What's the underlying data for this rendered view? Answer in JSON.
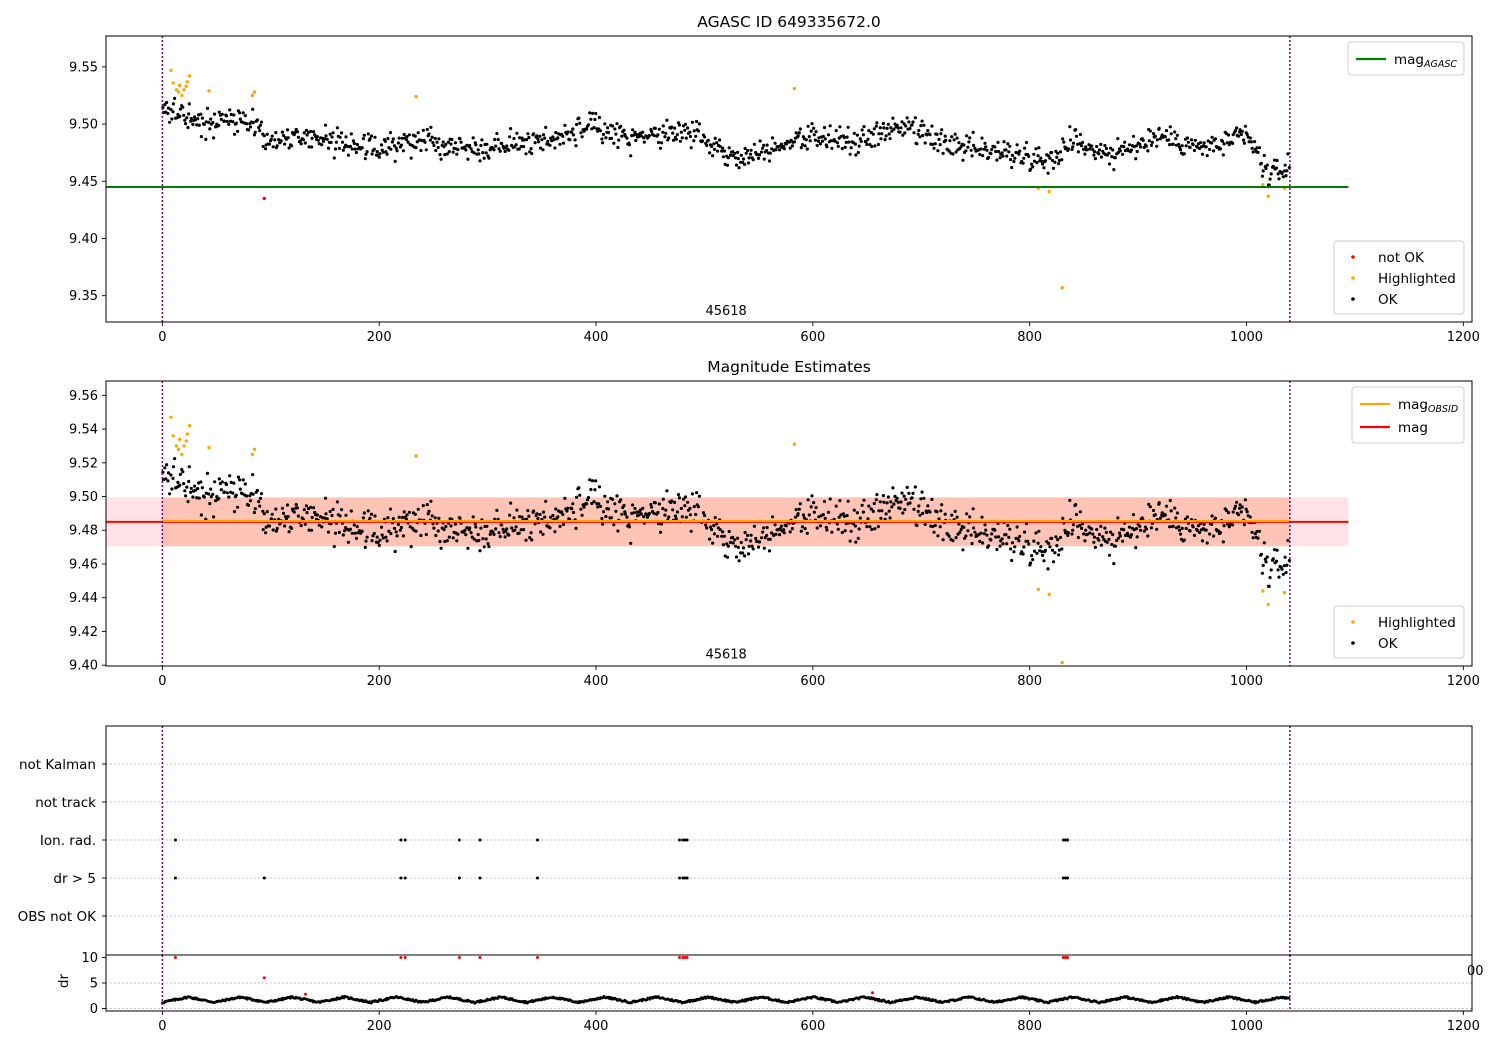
{
  "chart_data": [
    {
      "type": "scatter",
      "title": "AGASC ID 649335672.0",
      "xlabel": "",
      "ylabel": "",
      "xlim": [
        -52,
        1208
      ],
      "ylim": [
        9.327,
        9.577
      ],
      "xticks": [
        0,
        200,
        400,
        600,
        800,
        1000,
        1200
      ],
      "yticks": [
        9.35,
        9.4,
        9.45,
        9.5,
        9.55
      ],
      "xtick_labels": [
        "0",
        "200",
        "400",
        "600",
        "800",
        "1000",
        "1200"
      ],
      "ytick_labels": [
        "9.35",
        "9.40",
        "9.45",
        "9.50",
        "9.55"
      ],
      "vlines": [
        0,
        1040
      ],
      "text_annotations": [
        {
          "text": "45618",
          "x": 520,
          "y": 9.333
        }
      ],
      "hlines": [
        {
          "name": "mag_AGASC",
          "y": 9.445,
          "x": [
            -52,
            1094
          ],
          "color": "#008000"
        }
      ],
      "legend_upper": {
        "position": "upper-right",
        "entries": [
          {
            "label_main": "mag",
            "label_sub": "AGASC",
            "color": "#008000"
          }
        ]
      },
      "legend_lower": {
        "position": "lower-right",
        "entries": [
          {
            "label": "not OK",
            "color": "#ff0000"
          },
          {
            "label": "Highlighted",
            "color": "#ffa500"
          },
          {
            "label": "OK",
            "color": "#000000"
          }
        ]
      },
      "series": [
        {
          "name": "OK",
          "color": "#000000",
          "trend": [
            [
              0,
              9.508
            ],
            [
              20,
              9.512
            ],
            [
              40,
              9.498
            ],
            [
              60,
              9.505
            ],
            [
              80,
              9.502
            ],
            [
              100,
              9.484
            ],
            [
              130,
              9.49
            ],
            [
              160,
              9.485
            ],
            [
              200,
              9.478
            ],
            [
              240,
              9.488
            ],
            [
              280,
              9.48
            ],
            [
              320,
              9.482
            ],
            [
              360,
              9.488
            ],
            [
              400,
              9.497
            ],
            [
              440,
              9.487
            ],
            [
              480,
              9.494
            ],
            [
              500,
              9.487
            ],
            [
              530,
              9.47
            ],
            [
              560,
              9.48
            ],
            [
              600,
              9.49
            ],
            [
              640,
              9.483
            ],
            [
              680,
              9.497
            ],
            [
              720,
              9.482
            ],
            [
              760,
              9.478
            ],
            [
              800,
              9.472
            ],
            [
              820,
              9.47
            ],
            [
              840,
              9.486
            ],
            [
              880,
              9.473
            ],
            [
              920,
              9.49
            ],
            [
              960,
              9.478
            ],
            [
              1000,
              9.49
            ],
            [
              1020,
              9.457
            ],
            [
              1040,
              9.46
            ]
          ],
          "spread": 0.011
        },
        {
          "name": "Highlighted",
          "color": "#ffa500",
          "points": [
            [
              8,
              9.547
            ],
            [
              10,
              9.536
            ],
            [
              13,
              9.53
            ],
            [
              15,
              9.528
            ],
            [
              16,
              9.534
            ],
            [
              18,
              9.525
            ],
            [
              20,
              9.53
            ],
            [
              22,
              9.533
            ],
            [
              23,
              9.537
            ],
            [
              25,
              9.542
            ],
            [
              43,
              9.529
            ],
            [
              83,
              9.525
            ],
            [
              85,
              9.528
            ],
            [
              234,
              9.524
            ],
            [
              583,
              9.531
            ],
            [
              808,
              9.444
            ],
            [
              818,
              9.441
            ],
            [
              830,
              9.357
            ],
            [
              1015,
              9.447
            ],
            [
              1020,
              9.437
            ],
            [
              1035,
              9.444
            ]
          ]
        },
        {
          "name": "not OK",
          "color": "#ff0000",
          "points": [
            [
              94,
              9.435
            ]
          ]
        }
      ]
    },
    {
      "type": "scatter",
      "title": "Magnitude Estimates",
      "xlabel": "",
      "ylabel": "",
      "xlim": [
        -52,
        1208
      ],
      "ylim": [
        9.3995,
        9.5685
      ],
      "xticks": [
        0,
        200,
        400,
        600,
        800,
        1000,
        1200
      ],
      "yticks": [
        9.4,
        9.42,
        9.44,
        9.46,
        9.48,
        9.5,
        9.52,
        9.54,
        9.56
      ],
      "xtick_labels": [
        "0",
        "200",
        "400",
        "600",
        "800",
        "1000",
        "1200"
      ],
      "ytick_labels": [
        "9.40",
        "9.42",
        "9.44",
        "9.46",
        "9.48",
        "9.50",
        "9.52",
        "9.54",
        "9.56"
      ],
      "vlines": [
        0,
        1040
      ],
      "text_annotations": [
        {
          "text": "45618",
          "x": 520,
          "y": 9.404
        }
      ],
      "bands": [
        {
          "name": "mag range",
          "y": [
            9.4705,
            9.4995
          ],
          "x": [
            -52,
            1094
          ],
          "color": "#ffb6c1"
        },
        {
          "name": "mag_OBSID range",
          "y": [
            9.4705,
            9.4995
          ],
          "x": [
            0,
            1040
          ],
          "color": "#ffa07a"
        }
      ],
      "hlines": [
        {
          "name": "mag",
          "y": 9.485,
          "x": [
            -52,
            1094
          ],
          "color": "#ff0000"
        },
        {
          "name": "mag_OBSID",
          "y": 9.4855,
          "x": [
            0,
            1040
          ],
          "color": "#ffa500"
        }
      ],
      "legend_upper": {
        "position": "upper-right",
        "entries": [
          {
            "label_main": "mag",
            "label_sub": "OBSID",
            "color": "#ffa500"
          },
          {
            "label": "mag",
            "color": "#ff0000"
          }
        ]
      },
      "legend_lower": {
        "position": "lower-right",
        "entries": [
          {
            "label": "Highlighted",
            "color": "#ffa500"
          },
          {
            "label": "OK",
            "color": "#000000"
          }
        ]
      },
      "series": [
        {
          "name": "OK",
          "color": "#000000",
          "trend": [
            [
              0,
              9.508
            ],
            [
              20,
              9.512
            ],
            [
              40,
              9.498
            ],
            [
              60,
              9.505
            ],
            [
              80,
              9.502
            ],
            [
              100,
              9.484
            ],
            [
              130,
              9.49
            ],
            [
              160,
              9.485
            ],
            [
              200,
              9.478
            ],
            [
              240,
              9.488
            ],
            [
              280,
              9.48
            ],
            [
              320,
              9.482
            ],
            [
              360,
              9.488
            ],
            [
              400,
              9.497
            ],
            [
              440,
              9.487
            ],
            [
              480,
              9.494
            ],
            [
              500,
              9.487
            ],
            [
              530,
              9.47
            ],
            [
              560,
              9.48
            ],
            [
              600,
              9.49
            ],
            [
              640,
              9.483
            ],
            [
              680,
              9.497
            ],
            [
              720,
              9.482
            ],
            [
              760,
              9.478
            ],
            [
              800,
              9.472
            ],
            [
              820,
              9.47
            ],
            [
              840,
              9.486
            ],
            [
              880,
              9.473
            ],
            [
              920,
              9.49
            ],
            [
              960,
              9.478
            ],
            [
              1000,
              9.49
            ],
            [
              1020,
              9.457
            ],
            [
              1040,
              9.46
            ]
          ],
          "spread": 0.011
        },
        {
          "name": "Highlighted",
          "color": "#ffa500",
          "points": [
            [
              8,
              9.547
            ],
            [
              10,
              9.536
            ],
            [
              13,
              9.53
            ],
            [
              15,
              9.528
            ],
            [
              16,
              9.534
            ],
            [
              18,
              9.525
            ],
            [
              20,
              9.53
            ],
            [
              22,
              9.533
            ],
            [
              23,
              9.537
            ],
            [
              25,
              9.542
            ],
            [
              43,
              9.529
            ],
            [
              83,
              9.525
            ],
            [
              85,
              9.528
            ],
            [
              234,
              9.524
            ],
            [
              583,
              9.531
            ],
            [
              808,
              9.445
            ],
            [
              818,
              9.442
            ],
            [
              830,
              9.4015
            ],
            [
              1015,
              9.444
            ],
            [
              1020,
              9.436
            ],
            [
              1035,
              9.443
            ]
          ]
        }
      ]
    },
    {
      "type": "scatter",
      "title": "",
      "xlabel": "",
      "ylabel": "",
      "xlim": [
        -52,
        1208
      ],
      "categories": [
        "not Kalman",
        "not track",
        "Ion. rad.",
        "dr > 5",
        "OBS not OK"
      ],
      "series": [
        {
          "name": "Ion. rad.",
          "color": "#000000",
          "x": [
            12,
            220,
            224,
            274,
            293,
            346,
            477,
            480,
            482,
            484,
            831,
            833,
            835
          ]
        },
        {
          "name": "dr > 5",
          "color": "#000000",
          "x": [
            12,
            94,
            220,
            224,
            274,
            293,
            346,
            477,
            480,
            482,
            484,
            831,
            833,
            835
          ]
        }
      ]
    },
    {
      "type": "scatter",
      "title": "",
      "xlabel": "",
      "ylabel": "dr",
      "xlim": [
        -52,
        1208
      ],
      "ylim": [
        -0.5,
        10.5
      ],
      "yticks": [
        0,
        5,
        10
      ],
      "ytick_labels": [
        "0",
        "5",
        "10"
      ],
      "xticks": [
        0,
        200,
        400,
        600,
        800,
        1000,
        1200
      ],
      "xtick_labels": [
        "0",
        "200",
        "400",
        "600",
        "800",
        "1000",
        "1200"
      ],
      "clipped_label": "00",
      "vlines": [
        0,
        1040
      ],
      "series": [
        {
          "name": "dr",
          "color": "#000000",
          "amplitude": 1.3,
          "baseline": 1.2
        },
        {
          "name": "dr > 5",
          "color": "#ff0000",
          "points": [
            [
              12,
              10
            ],
            [
              220,
              10
            ],
            [
              224,
              10
            ],
            [
              274,
              10
            ],
            [
              293,
              10
            ],
            [
              346,
              10
            ],
            [
              477,
              10
            ],
            [
              480,
              10
            ],
            [
              482,
              10
            ],
            [
              484,
              10
            ],
            [
              831,
              10
            ],
            [
              833,
              10
            ],
            [
              835,
              10
            ],
            [
              94,
              6
            ],
            [
              132,
              2.8
            ],
            [
              655,
              3.1
            ]
          ]
        }
      ]
    }
  ]
}
